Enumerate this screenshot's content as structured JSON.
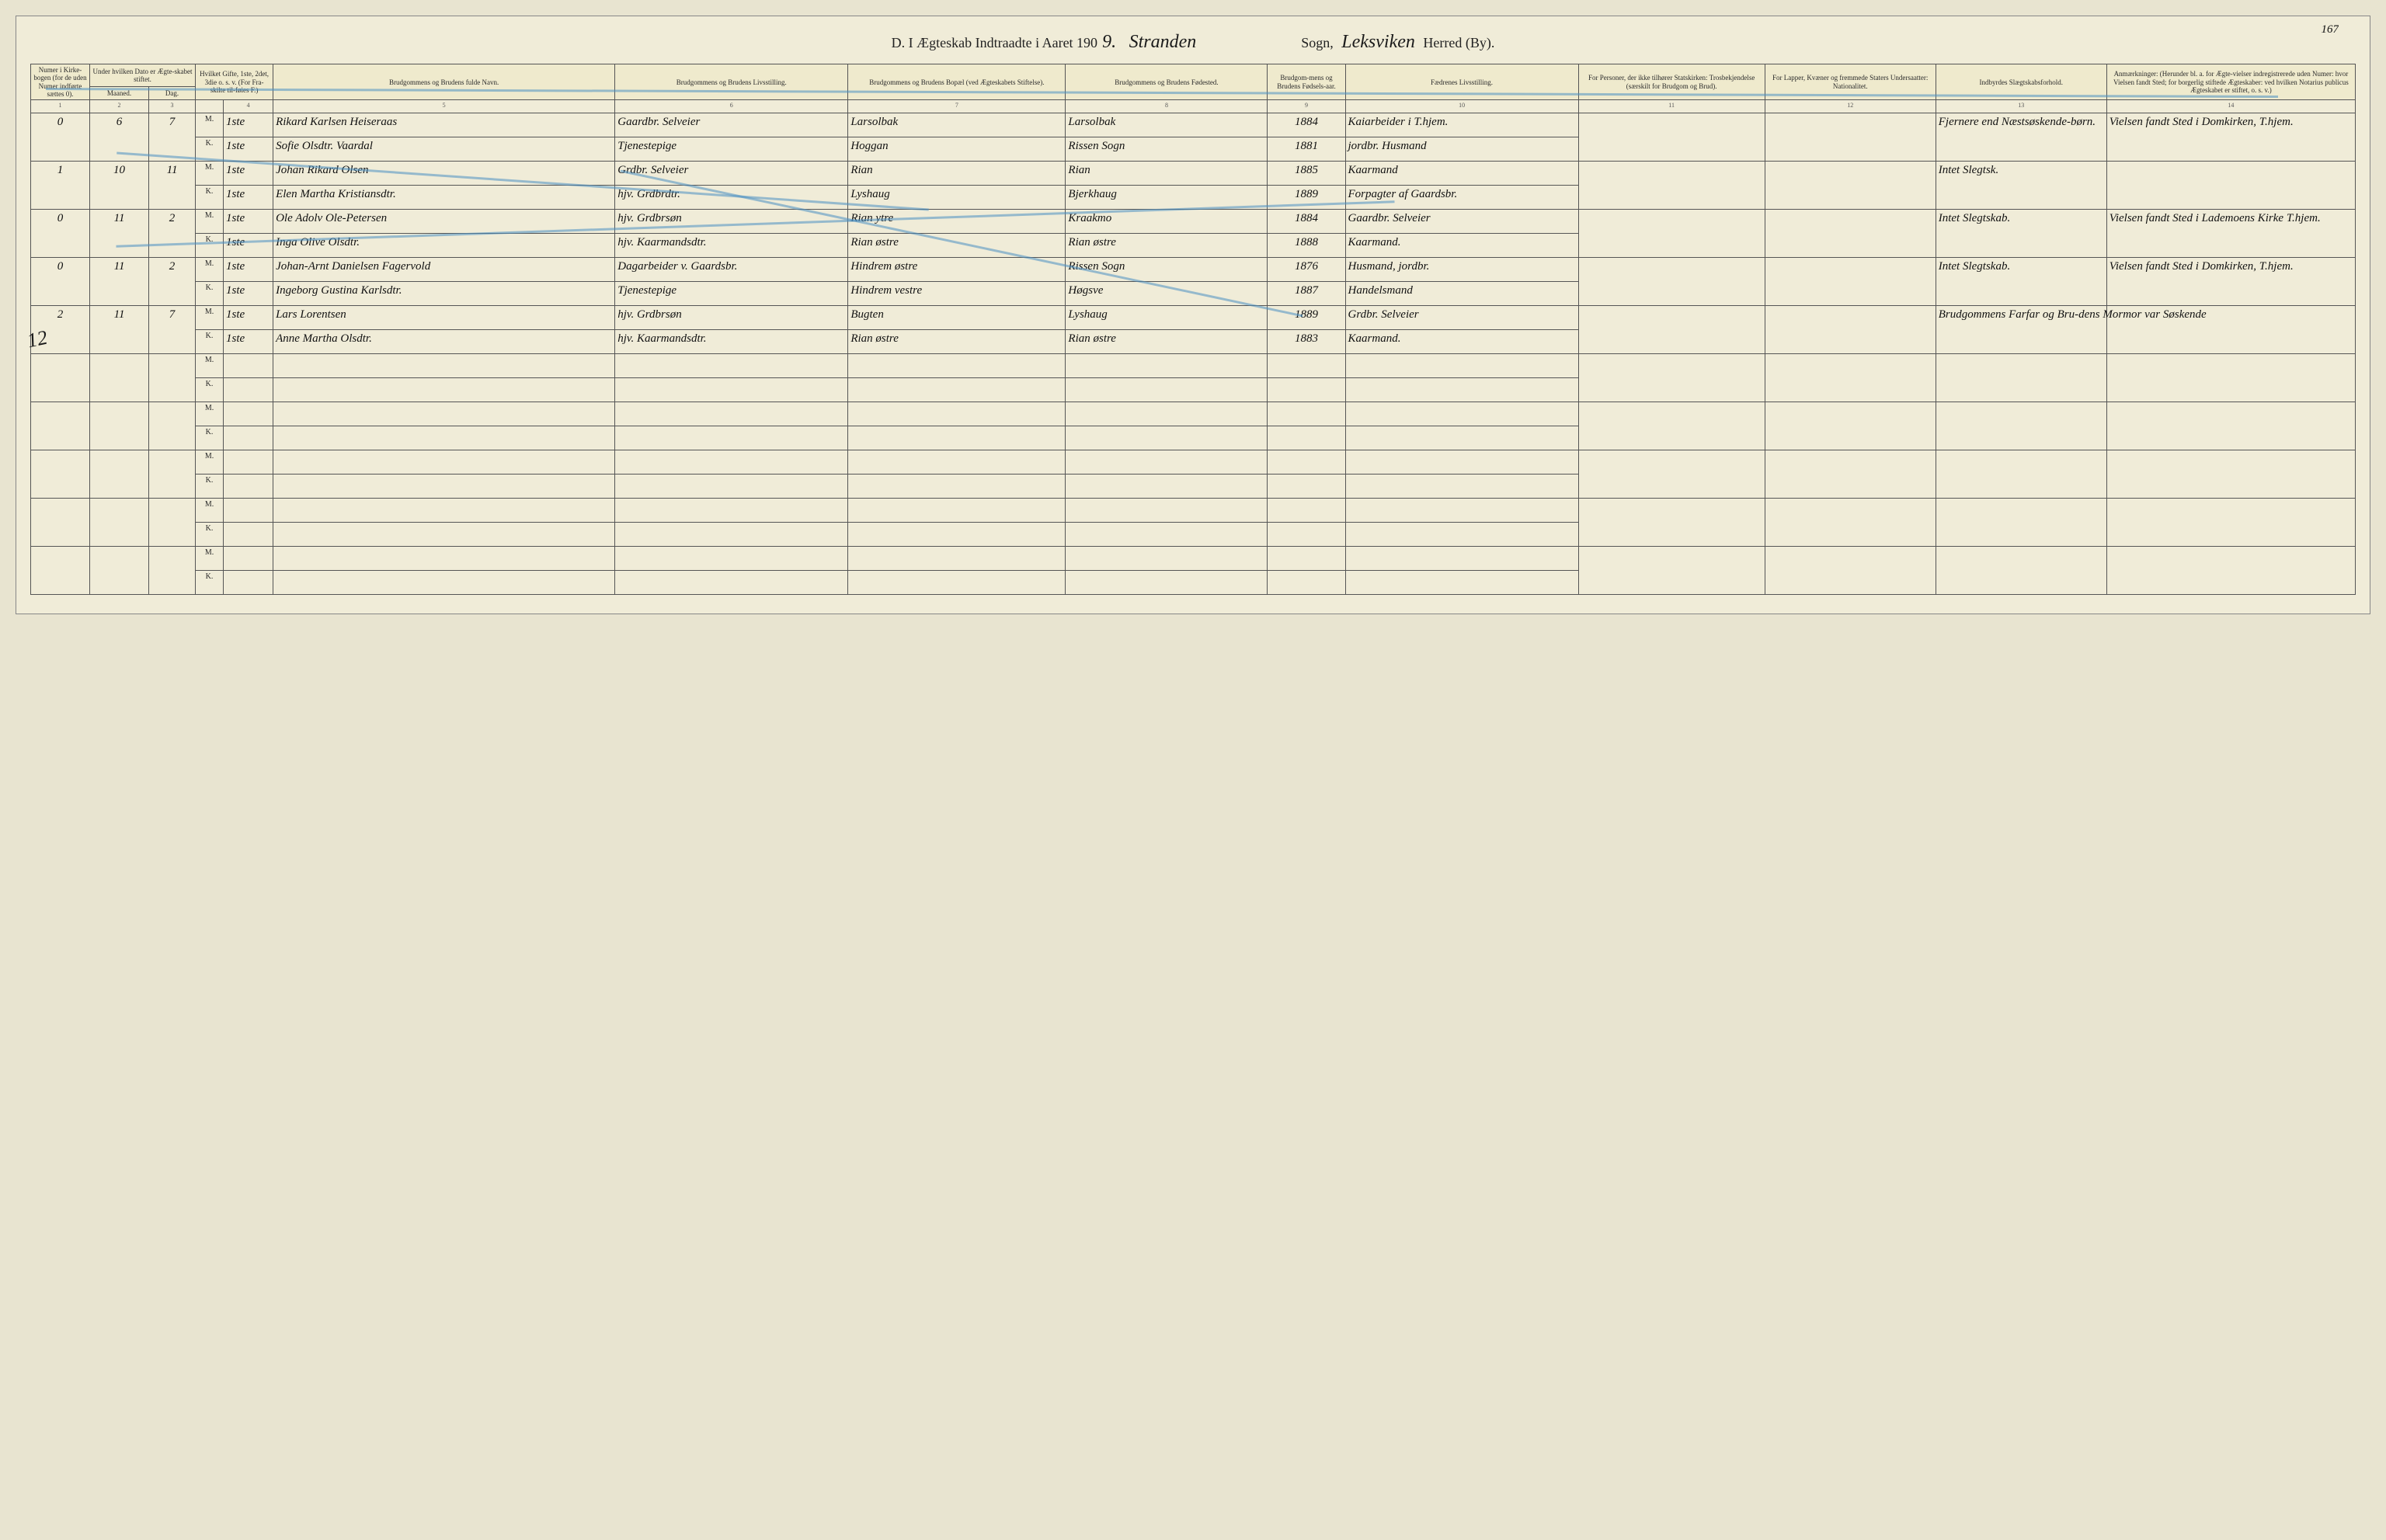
{
  "page_number_top": "167",
  "title": {
    "prefix": "D.  I Ægteskab Indtraadte i Aaret 190",
    "year_suffix": "9.",
    "parish_hw": "Stranden",
    "sogn_label": "Sogn,",
    "district_hw": "Leksviken",
    "herred_label": "Herred (By)."
  },
  "margin_note": "12",
  "headers": {
    "c1": "Numer i Kirke-bogen (for de uden Numer indførte sættes 0).",
    "c2": "Under hvilken Dato er Ægte-skabet stiftet.",
    "c3": "Maaned.",
    "c4": "Dag.",
    "c5": "Hvilket Gifte, 1ste, 2det, 3die o. s. v. (For Fra-skilte til-føies F.)",
    "c6": "Brudgommens og Brudens fulde Navn.",
    "c7": "Brudgommens og Brudens Livsstilling.",
    "c8": "Brudgommens og Brudens Bopæl (ved Ægteskabets Stiftelse).",
    "c9": "Brudgommens og Brudens Fødested.",
    "c10": "Brudgom-mens og Brudens Fødsels-aar.",
    "c11": "Fædrenes Livsstilling.",
    "c12": "For Personer, der ikke tilhører Statskirken: Trosbekjendelse (særskilt for Brudgom og Brud).",
    "c13": "For Lapper, Kvæner og fremmede Staters Undersaatter: Nationalitet.",
    "c14": "Indbyrdes Slægtskabsforhold.",
    "c15": "Anmærkninger: (Herunder bl. a. for Ægte-vielser indregistrerede uden Numer: hvor Vielsen fandt Sted; for borgerlig stiftede Ægteskaber: ved hvilken Notarius publicus Ægteskabet er stiftet, o. s. v.)"
  },
  "colnums": [
    "1",
    "2",
    "3",
    "4",
    "5",
    "6",
    "7",
    "8",
    "9",
    "10",
    "11",
    "12",
    "13",
    "14"
  ],
  "col_widths": [
    "38px",
    "38px",
    "30px",
    "18px",
    "32px",
    "220px",
    "150px",
    "140px",
    "130px",
    "50px",
    "150px",
    "120px",
    "110px",
    "110px",
    "160px"
  ],
  "rows": [
    {
      "num": "0",
      "maaned": "6",
      "dag": "7",
      "m": {
        "gifte": "1ste",
        "navn": "Rikard Karlsen Heiseraas",
        "stilling": "Gaardbr. Selveier",
        "bopel": "Larsolbak",
        "fodested": "Larsolbak",
        "aar": "1884",
        "fader": "Kaiarbeider i T.hjem.",
        "c14": "Fjernere end Næstsøskende-børn.",
        "c15": "Vielsen fandt Sted i Domkirken, T.hjem."
      },
      "k": {
        "gifte": "1ste",
        "navn": "Sofie Olsdtr. Vaardal",
        "stilling": "Tjenestepige",
        "bopel": "Hoggan",
        "fodested": "Rissen Sogn",
        "aar": "1881",
        "fader": "jordbr. Husmand"
      }
    },
    {
      "num": "1",
      "maaned": "10",
      "dag": "11",
      "m": {
        "gifte": "1ste",
        "navn": "Johan Rikard Olsen",
        "stilling": "Grdbr. Selveier",
        "bopel": "Rian",
        "fodested": "Rian",
        "aar": "1885",
        "fader": "Kaarmand",
        "c14": "Intet Slegtsk."
      },
      "k": {
        "gifte": "1ste",
        "navn": "Elen Martha Kristiansdtr.",
        "stilling": "hjv. Grdbrdtr.",
        "bopel": "Lyshaug",
        "fodested": "Bjerkhaug",
        "aar": "1889",
        "fader": "Forpagter af Gaardsbr."
      }
    },
    {
      "num": "0",
      "maaned": "11",
      "dag": "2",
      "m": {
        "gifte": "1ste",
        "navn": "Ole Adolv Ole-Petersen",
        "stilling": "hjv. Grdbrsøn",
        "bopel": "Rian ytre",
        "fodested": "Kraakmo",
        "aar": "1884",
        "fader": "Gaardbr. Selveier",
        "c14": "Intet Slegtskab.",
        "c15": "Vielsen fandt Sted i Lademoens Kirke T.hjem."
      },
      "k": {
        "gifte": "1ste",
        "navn": "Inga Olive Olsdtr.",
        "stilling": "hjv. Kaarmandsdtr.",
        "bopel": "Rian østre",
        "fodested": "Rian østre",
        "aar": "1888",
        "fader": "Kaarmand."
      }
    },
    {
      "num": "0",
      "maaned": "11",
      "dag": "2",
      "m": {
        "gifte": "1ste",
        "navn": "Johan-Arnt Danielsen Fagervold",
        "stilling": "Dagarbeider v. Gaardsbr.",
        "bopel": "Hindrem østre",
        "fodested": "Rissen Sogn",
        "aar": "1876",
        "fader": "Husmand, jordbr.",
        "c14": "Intet Slegtskab.",
        "c15": "Vielsen fandt Sted i Domkirken, T.hjem."
      },
      "k": {
        "gifte": "1ste",
        "navn": "Ingeborg Gustina Karlsdtr.",
        "stilling": "Tjenestepige",
        "bopel": "Hindrem vestre",
        "fodested": "Høgsve",
        "aar": "1887",
        "fader": "Handelsmand"
      }
    },
    {
      "num": "2",
      "maaned": "11",
      "dag": "7",
      "m": {
        "gifte": "1ste",
        "navn": "Lars Lorentsen",
        "stilling": "hjv. Grdbrsøn",
        "bopel": "Bugten",
        "fodested": "Lyshaug",
        "aar": "1889",
        "fader": "Grdbr. Selveier",
        "c14": "Brudgommens Farfar og Bru-dens Mormor var Søskende"
      },
      "k": {
        "gifte": "1ste",
        "navn": "Anne Martha Olsdtr.",
        "stilling": "hjv. Kaarmandsdtr.",
        "bopel": "Rian østre",
        "fodested": "Rian østre",
        "aar": "1883",
        "fader": "Kaarmand."
      }
    }
  ],
  "empty_pairs": 5,
  "colors": {
    "paper": "#f0ecd8",
    "ink": "#1a1a1a",
    "rule": "#555555",
    "blue_pencil": "#4a90c2"
  }
}
